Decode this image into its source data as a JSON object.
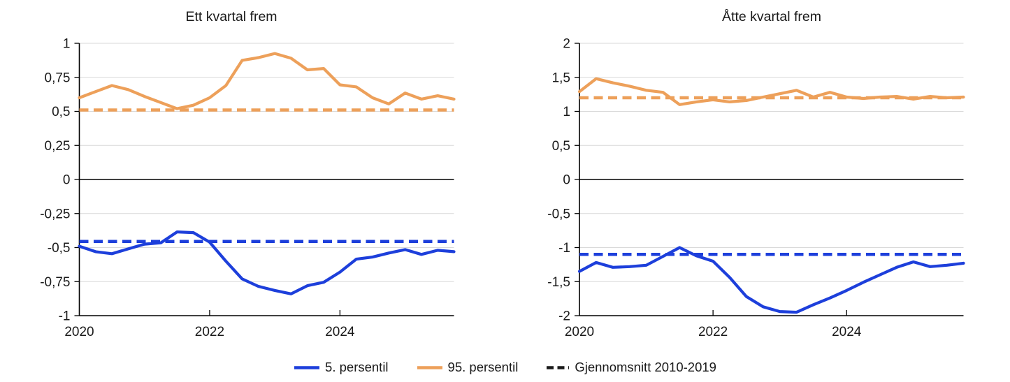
{
  "palette": {
    "blue": "#1d3fdb",
    "orange": "#eda05a",
    "axis": "#000000",
    "grid": "#d9d9d9",
    "legend_dash": "#1a1a1a",
    "background": "#ffffff"
  },
  "chart_data": [
    {
      "type": "line",
      "title": "Ett kvartal frem",
      "x_start": 2020,
      "x_step": 0.25,
      "ylim": [
        -1,
        1
      ],
      "grid": true,
      "yticks": [
        {
          "label": "1",
          "v": 1
        },
        {
          "label": "0,75",
          "v": 0.75
        },
        {
          "label": "0,5",
          "v": 0.5
        },
        {
          "label": "0,25",
          "v": 0.25
        },
        {
          "label": "0",
          "v": 0
        },
        {
          "label": "-0,25",
          "v": -0.25
        },
        {
          "label": "-0,5",
          "v": -0.5
        },
        {
          "label": "-0,75",
          "v": -0.75
        },
        {
          "label": "-1",
          "v": -1
        }
      ],
      "xticks": [
        {
          "label": "2020",
          "t": 2020
        },
        {
          "label": "2022",
          "t": 2022
        },
        {
          "label": "2024",
          "t": 2024
        }
      ],
      "series": [
        {
          "name": "5. persentil",
          "color": "blue",
          "style": "solid",
          "values": [
            -0.49,
            -0.53,
            -0.545,
            -0.51,
            -0.475,
            -0.465,
            -0.385,
            -0.39,
            -0.46,
            -0.6,
            -0.73,
            -0.785,
            -0.815,
            -0.84,
            -0.78,
            -0.755,
            -0.68,
            -0.585,
            -0.57,
            -0.54,
            -0.515,
            -0.55,
            -0.52,
            -0.53
          ]
        },
        {
          "name": "95. persentil",
          "color": "orange",
          "style": "solid",
          "values": [
            0.6,
            0.645,
            0.69,
            0.66,
            0.61,
            0.565,
            0.52,
            0.545,
            0.6,
            0.69,
            0.875,
            0.895,
            0.925,
            0.89,
            0.805,
            0.815,
            0.695,
            0.68,
            0.6,
            0.555,
            0.635,
            0.59,
            0.615,
            0.59
          ]
        },
        {
          "name": "Gjennomsnitt 2010-2019 (95. persentil)",
          "color": "orange",
          "style": "dashed",
          "const": 0.51
        },
        {
          "name": "Gjennomsnitt 2010-2019 (5. persentil)",
          "color": "blue",
          "style": "dashed",
          "const": -0.455
        }
      ]
    },
    {
      "type": "line",
      "title": "Åtte kvartal frem",
      "x_start": 2020,
      "x_step": 0.25,
      "ylim": [
        -2,
        2
      ],
      "grid": true,
      "yticks": [
        {
          "label": "2",
          "v": 2
        },
        {
          "label": "1,5",
          "v": 1.5
        },
        {
          "label": "1",
          "v": 1
        },
        {
          "label": "0,5",
          "v": 0.5
        },
        {
          "label": "0",
          "v": 0
        },
        {
          "label": "-0,5",
          "v": -0.5
        },
        {
          "label": "-1",
          "v": -1
        },
        {
          "label": "-1,5",
          "v": -1.5
        },
        {
          "label": "-2",
          "v": -2
        }
      ],
      "xticks": [
        {
          "label": "2020",
          "t": 2020
        },
        {
          "label": "2022",
          "t": 2022
        },
        {
          "label": "2024",
          "t": 2024
        }
      ],
      "series": [
        {
          "name": "5. persentil",
          "color": "blue",
          "style": "solid",
          "values": [
            -1.35,
            -1.22,
            -1.29,
            -1.28,
            -1.26,
            -1.13,
            -1.0,
            -1.12,
            -1.2,
            -1.44,
            -1.72,
            -1.87,
            -1.94,
            -1.95,
            -1.84,
            -1.74,
            -1.63,
            -1.51,
            -1.4,
            -1.29,
            -1.21,
            -1.28,
            -1.26,
            -1.23
          ]
        },
        {
          "name": "95. persentil",
          "color": "orange",
          "style": "solid",
          "values": [
            1.29,
            1.48,
            1.42,
            1.37,
            1.31,
            1.28,
            1.1,
            1.14,
            1.17,
            1.14,
            1.16,
            1.21,
            1.26,
            1.31,
            1.21,
            1.28,
            1.21,
            1.19,
            1.21,
            1.22,
            1.18,
            1.22,
            1.2,
            1.21
          ]
        },
        {
          "name": "Gjennomsnitt 2010-2019 (95. persentil)",
          "color": "orange",
          "style": "dashed",
          "const": 1.2
        },
        {
          "name": "Gjennomsnitt 2010-2019 (5. persentil)",
          "color": "blue",
          "style": "dashed",
          "const": -1.1
        }
      ]
    }
  ],
  "legend": {
    "items": [
      {
        "label": "5. persentil",
        "color": "blue",
        "style": "solid"
      },
      {
        "label": "95. persentil",
        "color": "orange",
        "style": "solid"
      },
      {
        "label": "Gjennomsnitt 2010-2019",
        "color": "legend_dash",
        "style": "dashed"
      }
    ]
  }
}
